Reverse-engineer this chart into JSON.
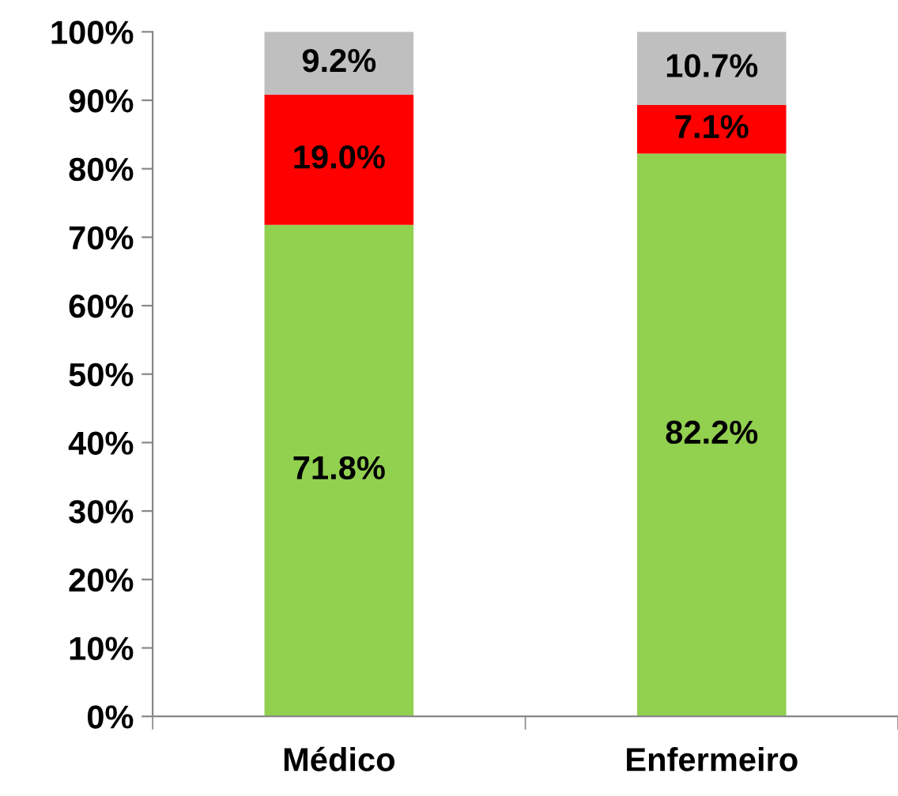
{
  "chart_data": {
    "type": "bar",
    "stacked": true,
    "categories": [
      "Médico",
      "Enfermeiro"
    ],
    "series": [
      {
        "color": "#92d050",
        "values": [
          71.8,
          82.2
        ],
        "value_labels": [
          "71.8%",
          "82.2%"
        ]
      },
      {
        "color": "#ff0000",
        "values": [
          19.0,
          7.1
        ],
        "value_labels": [
          "19.0%",
          "7.1%"
        ]
      },
      {
        "color": "#bfbfbf",
        "values": [
          9.2,
          10.7
        ],
        "value_labels": [
          "9.2%",
          "10.7%"
        ]
      }
    ],
    "ylim": [
      0,
      100
    ],
    "yticks": [
      {
        "value": 0,
        "label": "0%"
      },
      {
        "value": 10,
        "label": "10%"
      },
      {
        "value": 20,
        "label": "20%"
      },
      {
        "value": 30,
        "label": "30%"
      },
      {
        "value": 40,
        "label": "40%"
      },
      {
        "value": 50,
        "label": "50%"
      },
      {
        "value": 60,
        "label": "60%"
      },
      {
        "value": 70,
        "label": "70%"
      },
      {
        "value": 80,
        "label": "80%"
      },
      {
        "value": 90,
        "label": "90%"
      },
      {
        "value": 100,
        "label": "100%"
      }
    ],
    "grid": false
  }
}
